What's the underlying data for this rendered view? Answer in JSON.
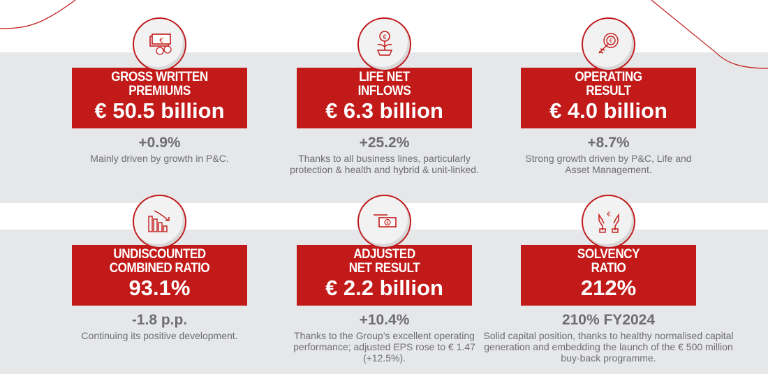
{
  "colors": {
    "accent": "#c21a18",
    "band": "#e6e7e9",
    "text": "#6e6e70"
  },
  "cards": [
    {
      "icon": "banknote-coins-icon",
      "title1": "GROSS WRITTEN",
      "title2": "PREMIUMS",
      "value": "€ 50.5 billion",
      "change": "+0.9%",
      "desc": "Mainly driven by growth in P&C."
    },
    {
      "icon": "euro-plant-icon",
      "title1": "LIFE NET",
      "title2": "INFLOWS",
      "value": "€ 6.3 billion",
      "change": "+25.2%",
      "desc": "Thanks to all business lines, particularly protection & health and hybrid & unit-linked."
    },
    {
      "icon": "euro-target-arrow-icon",
      "title1": "OPERATING",
      "title2": "RESULT",
      "value": "€ 4.0 billion",
      "change": "+8.7%",
      "desc": "Strong growth driven by P&C, Life and Asset Management."
    },
    {
      "icon": "declining-bar-chart-icon",
      "title1": "UNDISCOUNTED",
      "title2": "COMBINED RATIO",
      "value": "93.1%",
      "change": "-1.8 p.p.",
      "desc": "Continuing its positive development."
    },
    {
      "icon": "hand-banknote-icon",
      "title1": "ADJUSTED",
      "title2": "NET RESULT",
      "value": "€ 2.2 billion",
      "change": "+10.4%",
      "desc": "Thanks to the Group’s excellent operating performance; adjusted EPS rose to € 1.47 (+12.5%)."
    },
    {
      "icon": "hands-euro-icon",
      "title1": "SOLVENCY",
      "title2": "RATIO",
      "value": "212%",
      "change": "210% FY2024",
      "desc": "Solid capital position, thanks to healthy normalised capital generation and embedding the launch of the € 500 million buy-back programme."
    }
  ]
}
